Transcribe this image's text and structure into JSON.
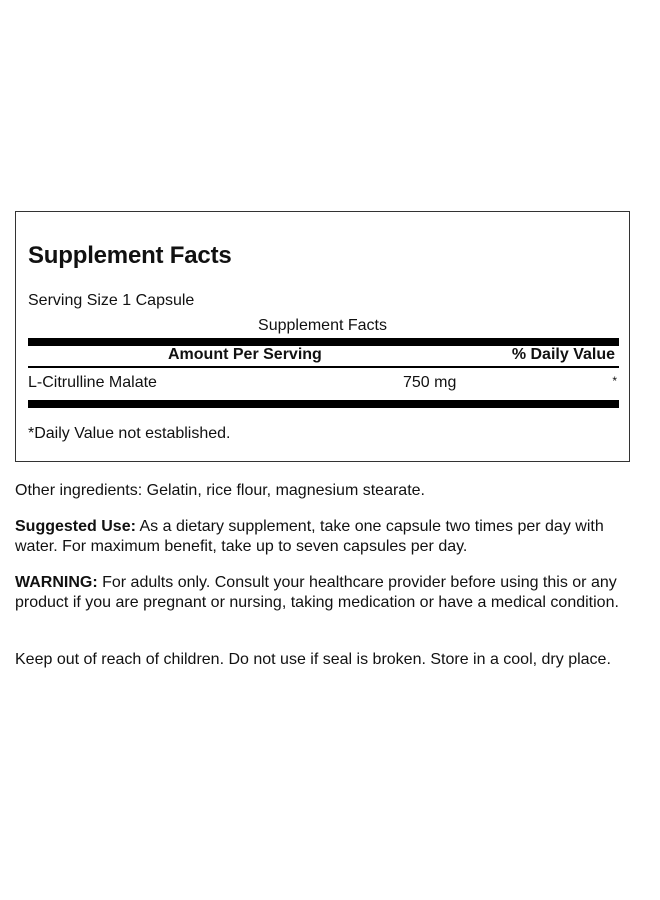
{
  "facts": {
    "title": "Supplement Facts",
    "serving_size": "Serving Size 1 Capsule",
    "caption": "Supplement Facts",
    "header_amount": "Amount Per Serving",
    "header_dv": "% Daily Value",
    "rows": [
      {
        "name": "L-Citrulline Malate",
        "amount": "750 mg",
        "dv": "*"
      }
    ],
    "footnote": "*Daily Value not established."
  },
  "other_ingredients": "Other ingredients: Gelatin, rice flour, magnesium stearate.",
  "suggested_use": {
    "label": "Suggested Use:",
    "text": " As a dietary supplement, take one capsule two times per day with water. For maximum benefit, take up to seven capsules per day."
  },
  "warning": {
    "label": "WARNING:",
    "text": " For adults only. Consult your healthcare provider before using this or any product if you are pregnant or nursing, taking medication or have a medical condition."
  },
  "storage": "Keep out of reach of children. Do not use if seal is broken. Store in a cool, dry place."
}
